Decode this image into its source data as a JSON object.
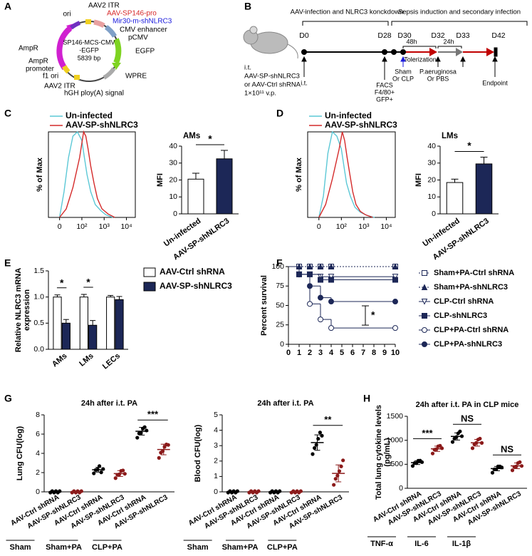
{
  "panel_labels": [
    "A",
    "B",
    "C",
    "D",
    "E",
    "F",
    "G",
    "H"
  ],
  "plasmid": {
    "name": [
      "SP146-MCS-CMV",
      "-EGFP"
    ],
    "size": "5839 bp",
    "labels": [
      {
        "text": "AAV2 ITR",
        "color": "#000000"
      },
      {
        "text": "ori",
        "color": "#000000"
      },
      {
        "text": "AAV-SP146-pro",
        "color": "#d62728"
      },
      {
        "text": "Mir30-m-shNLRC3",
        "color": "#1a1adc"
      },
      {
        "text": "CMV enhancer",
        "color": "#000000"
      },
      {
        "text": "pCMV",
        "color": "#000000"
      },
      {
        "text": "EGFP",
        "color": "#000000"
      },
      {
        "text": "WPRE",
        "color": "#000000"
      },
      {
        "text": "hGH ploy(A) signal",
        "color": "#000000"
      },
      {
        "text": "AAV2 ITR",
        "color": "#000000"
      },
      {
        "text": "f1 ori",
        "color": "#000000"
      },
      {
        "text": "AmpR",
        "color": "#000000"
      },
      {
        "text": "promoter",
        "color": "#000000"
      },
      {
        "text": "AmpR",
        "color": "#000000"
      }
    ]
  },
  "timeline": {
    "phases": [
      "AAV-infection and NLRC3 konckdown",
      "Sepsis induction and secondary infection"
    ],
    "days": [
      "D0",
      "D28",
      "D30",
      "D32",
      "D33",
      "D42"
    ],
    "treatment": [
      "i.t.",
      "AAV-SP-shNLRC3",
      "or AAV-Ctrl shRNA",
      "1×10¹¹ v.p."
    ],
    "events": [
      "i.t.",
      "FACS",
      "F4/80+",
      "GFP+",
      "Sham",
      "Or CLP",
      "P.aeruginosa",
      "Or PBS",
      "Endpoint"
    ],
    "intervals": [
      "48h",
      "Tolerization",
      "24h"
    ]
  },
  "chart_data": [
    {
      "type": "flow-histogram",
      "ylabel": "% of Max",
      "xscale": "biexponential",
      "xlim": [
        -50,
        25000
      ],
      "xticks": [
        0,
        {
          "value": 100,
          "label": "10²"
        },
        {
          "value": 1000,
          "label": "10³"
        },
        {
          "value": 10000,
          "label": "10⁴"
        }
      ],
      "ylim": [
        0,
        100
      ],
      "legend": "top-left",
      "series": [
        {
          "name": "Un-infected",
          "color": "#5cc8d6",
          "x": [
            0,
            20,
            40,
            60,
            80,
            100,
            130,
            170,
            250,
            400,
            700,
            1200,
            2500
          ],
          "values": [
            0,
            30,
            70,
            95,
            100,
            90,
            70,
            50,
            30,
            15,
            8,
            3,
            0
          ]
        },
        {
          "name": "AAV-SP-shNLRC3",
          "color": "#d42a2a",
          "x": [
            0,
            30,
            60,
            90,
            120,
            150,
            190,
            250,
            350,
            500,
            800,
            1500,
            3000
          ],
          "values": [
            0,
            10,
            35,
            70,
            100,
            95,
            80,
            60,
            40,
            22,
            10,
            4,
            0
          ]
        }
      ]
    },
    {
      "type": "bar",
      "title": "AMs",
      "ylabel": "MFI",
      "categories": [
        "Un-infected",
        "AAV-SP-shNLRC3"
      ],
      "values": [
        20.5,
        32.5
      ],
      "errors": [
        3.5,
        5
      ],
      "colors": [
        "#ffffff",
        "#1c2757"
      ],
      "ylim": [
        0,
        40
      ],
      "yticks": [
        0,
        10,
        20,
        30,
        40
      ],
      "significance": "*"
    },
    {
      "type": "flow-histogram",
      "ylabel": "% of Max",
      "xscale": "biexponential",
      "xlim": [
        -50,
        25000
      ],
      "xticks": [
        0,
        {
          "value": 100,
          "label": "10²"
        },
        {
          "value": 1000,
          "label": "10³"
        },
        {
          "value": 10000,
          "label": "10⁴"
        }
      ],
      "ylim": [
        0,
        100
      ],
      "legend": "top-left",
      "series": [
        {
          "name": "Un-infected",
          "color": "#5cc8d6",
          "x": [
            0,
            20,
            40,
            60,
            80,
            100,
            130,
            170,
            250,
            400,
            700,
            1500,
            3000
          ],
          "values": [
            0,
            25,
            75,
            100,
            95,
            80,
            60,
            40,
            25,
            12,
            6,
            2,
            0
          ]
        },
        {
          "name": "AAV-SP-shNLRC3",
          "color": "#d42a2a",
          "x": [
            0,
            30,
            60,
            90,
            110,
            140,
            180,
            240,
            320,
            450,
            700,
            1200,
            2500
          ],
          "values": [
            0,
            15,
            45,
            80,
            100,
            90,
            70,
            50,
            30,
            15,
            7,
            3,
            0
          ]
        }
      ]
    },
    {
      "type": "bar",
      "title": "LMs",
      "ylabel": "MFI",
      "categories": [
        "Un-infected",
        "AAV-SP-shNLRC3"
      ],
      "values": [
        18.5,
        29.5
      ],
      "errors": [
        2,
        4
      ],
      "colors": [
        "#ffffff",
        "#1c2757"
      ],
      "ylim": [
        0,
        40
      ],
      "yticks": [
        0,
        10,
        20,
        30,
        40
      ],
      "significance": "*"
    },
    {
      "type": "grouped-bar",
      "ylabel": [
        "Relative NLRC3 mRNA",
        "expression"
      ],
      "categories": [
        "AMs",
        "LMs",
        "LECs"
      ],
      "legend": "right",
      "series": [
        {
          "name": "AAV-Ctrl shRNA",
          "color": "#ffffff",
          "values": [
            1.0,
            1.0,
            1.0
          ],
          "errors": [
            0.04,
            0.05,
            0.03
          ]
        },
        {
          "name": "AAV-SP-shNLRC3",
          "color": "#1c2757",
          "values": [
            0.5,
            0.46,
            0.95
          ],
          "errors": [
            0.07,
            0.09,
            0.06
          ]
        }
      ],
      "ylim": [
        0,
        1.5
      ],
      "yticks": [
        {
          "value": 0,
          "label": "0.0"
        },
        {
          "value": 0.5,
          "label": "0.5"
        },
        {
          "value": 1,
          "label": "1.0"
        },
        {
          "value": 1.5,
          "label": "1.5"
        }
      ],
      "significance": [
        "*",
        "*",
        null
      ]
    },
    {
      "type": "survival",
      "ylabel": "Percent survival",
      "x": [
        0,
        1,
        2,
        3,
        4,
        10
      ],
      "xlim": [
        0,
        10
      ],
      "xticks": [
        0,
        1,
        2,
        3,
        4,
        5,
        6,
        7,
        8,
        9,
        10
      ],
      "ylim": [
        0,
        100
      ],
      "yticks": [
        0,
        25,
        50,
        75,
        100
      ],
      "legend": "right",
      "significance": "*",
      "series": [
        {
          "name": "Sham+PA-Ctrl shRNA",
          "color": "#1c2757",
          "marker": "square-open",
          "line_style": "dotted",
          "values": [
            100,
            100,
            100,
            100,
            100,
            100
          ]
        },
        {
          "name": "Sham+PA-shNLRC3",
          "color": "#1c2757",
          "marker": "triangle",
          "line_style": "dotted",
          "values": [
            100,
            100,
            100,
            100,
            100,
            100
          ]
        },
        {
          "name": "CLP-Ctrl shRNA",
          "color": "#1c2757",
          "marker": "triangle-down-open",
          "line_style": "solid",
          "values": [
            100,
            90,
            90,
            87,
            87,
            87
          ]
        },
        {
          "name": "CLP-shNLRC3",
          "color": "#1c2757",
          "marker": "square",
          "line_style": "solid",
          "values": [
            100,
            90,
            90,
            83,
            83,
            83
          ]
        },
        {
          "name": "CLP+PA-Ctrl shRNA",
          "color": "#1c2757",
          "marker": "circle-open",
          "line_style": "solid",
          "values": [
            100,
            90,
            52,
            32,
            21,
            21
          ]
        },
        {
          "name": "CLP+PA-shNLRC3",
          "color": "#1c2757",
          "marker": "circle",
          "line_style": "solid",
          "values": [
            100,
            90,
            75,
            60,
            55,
            55
          ]
        }
      ]
    },
    {
      "type": "strip",
      "title": "24h after i.t. PA",
      "ylabel": "Lung CFU(log)",
      "categories": [
        "AAV-Ctrl shRNA",
        "AAV-SP-shNLRC3",
        "AAV-Ctrl shRNA",
        "AAV-SP-shNLRC3",
        "AAV-Ctrl shRNA",
        "AAV-SP-shNLRC3"
      ],
      "groups": [
        "Sham",
        "Sham+PA",
        "CLP+PA"
      ],
      "colors": [
        "#000000",
        "#8b1a1a",
        "#000000",
        "#8b1a1a",
        "#000000",
        "#8b1a1a"
      ],
      "points": [
        [
          0,
          0,
          0,
          0,
          0,
          0
        ],
        [
          0,
          0,
          0,
          0,
          0,
          0
        ],
        [
          2.0,
          2.2,
          2.4,
          2.6,
          2.1,
          2.3
        ],
        [
          1.5,
          1.7,
          1.9,
          2.1,
          2.3,
          1.8
        ],
        [
          5.7,
          6.0,
          6.2,
          6.5,
          6.8,
          6.3
        ],
        [
          3.6,
          4.0,
          4.3,
          4.6,
          5.0,
          4.8
        ]
      ],
      "means": [
        0,
        0,
        2.3,
        1.9,
        6.3,
        4.4
      ],
      "errors": [
        0,
        0,
        0.25,
        0.3,
        0.4,
        0.55
      ],
      "ylim": [
        0,
        8
      ],
      "yticks": [
        0,
        2,
        4,
        6,
        8
      ],
      "significance": "***"
    },
    {
      "type": "strip",
      "title": "24h after i.t. PA",
      "ylabel": "Blood CFU(log)",
      "categories": [
        "AAV-Ctrl shRNA",
        "AAV-SP-shNLRC3",
        "AAV-Ctrl shRNA",
        "AAV-SP-shNLRC3",
        "AAV-Ctrl shRNA",
        "AAV-SP-shNLRC3"
      ],
      "groups": [
        "Sham",
        "Sham+PA",
        "CLP+PA"
      ],
      "colors": [
        "#000000",
        "#8b1a1a",
        "#000000",
        "#8b1a1a",
        "#000000",
        "#8b1a1a"
      ],
      "points": [
        [
          0,
          0,
          0,
          0,
          0,
          0
        ],
        [
          0,
          0,
          0,
          0,
          0,
          0
        ],
        [
          0,
          0,
          0,
          0,
          0,
          0
        ],
        [
          0,
          0,
          0,
          0,
          0,
          0
        ],
        [
          2.5,
          2.8,
          3.1,
          3.4,
          3.9,
          3.6
        ],
        [
          0.5,
          0.8,
          1.1,
          1.3,
          1.7,
          2.0
        ]
      ],
      "means": [
        0,
        0,
        0,
        0,
        3.2,
        1.2
      ],
      "errors": [
        0,
        0,
        0,
        0,
        0.5,
        0.55
      ],
      "ylim": [
        0,
        5
      ],
      "yticks": [
        0,
        1,
        2,
        3,
        4,
        5
      ],
      "significance": "**"
    },
    {
      "type": "strip",
      "title": "24h after i.t. PA in CLP mice",
      "ylabel": [
        "Total lung cytokine levels",
        "(pg/mL)"
      ],
      "categories": [
        "AAV-Ctrl shRNA",
        "AAV-SP-shNLRC3",
        "AAV-Ctrl shRNA",
        "AAV-SP-shNLRC3",
        "AAV-Ctrl shRNA",
        "AAV-SP-shNLRC3"
      ],
      "groups": [
        "TNF-α",
        "IL-6",
        "IL-1β"
      ],
      "colors": [
        "#000000",
        "#8b1a1a",
        "#000000",
        "#8b1a1a",
        "#000000",
        "#8b1a1a"
      ],
      "points": [
        [
          480,
          510,
          540,
          560,
          590,
          530
        ],
        [
          740,
          790,
          830,
          860,
          900,
          820
        ],
        [
          980,
          1020,
          1080,
          1130,
          1200,
          1070
        ],
        [
          850,
          900,
          960,
          1000,
          1050,
          930
        ],
        [
          340,
          380,
          410,
          440,
          470,
          420
        ],
        [
          390,
          430,
          470,
          510,
          560,
          450
        ]
      ],
      "means": [
        535,
        823,
        1080,
        948,
        410,
        468
      ],
      "errors": [
        40,
        55,
        75,
        70,
        45,
        60
      ],
      "ylim": [
        0,
        1500
      ],
      "yticks": [
        0,
        500,
        1000,
        1500
      ],
      "significance": [
        "***",
        "NS",
        "NS"
      ]
    }
  ]
}
